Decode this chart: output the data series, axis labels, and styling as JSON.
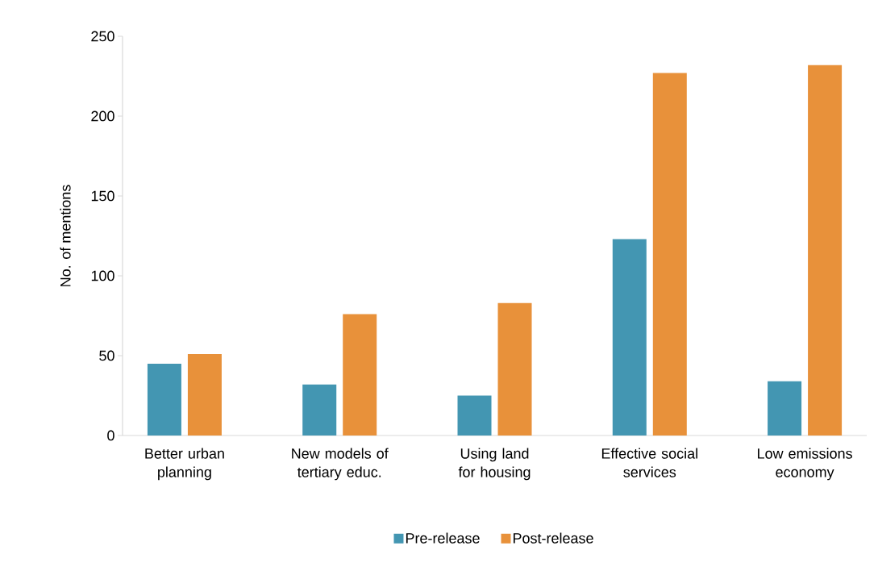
{
  "chart_data": {
    "type": "bar",
    "ylabel": "No. of mentions",
    "categories": [
      "Better urban planning",
      "New models of tertiary educ.",
      "Using land for housing",
      "Effective social services",
      "Low emissions economy"
    ],
    "series": [
      {
        "name": "Pre-release",
        "color": "#4396b2",
        "values": [
          45,
          32,
          25,
          123,
          34
        ]
      },
      {
        "name": "Post-release",
        "color": "#e8913a",
        "values": [
          51,
          76,
          83,
          227,
          232
        ]
      }
    ],
    "ylim": [
      0,
      250
    ],
    "yticks": [
      0,
      50,
      100,
      150,
      200,
      250
    ],
    "grid": false,
    "legend": "bottom"
  }
}
